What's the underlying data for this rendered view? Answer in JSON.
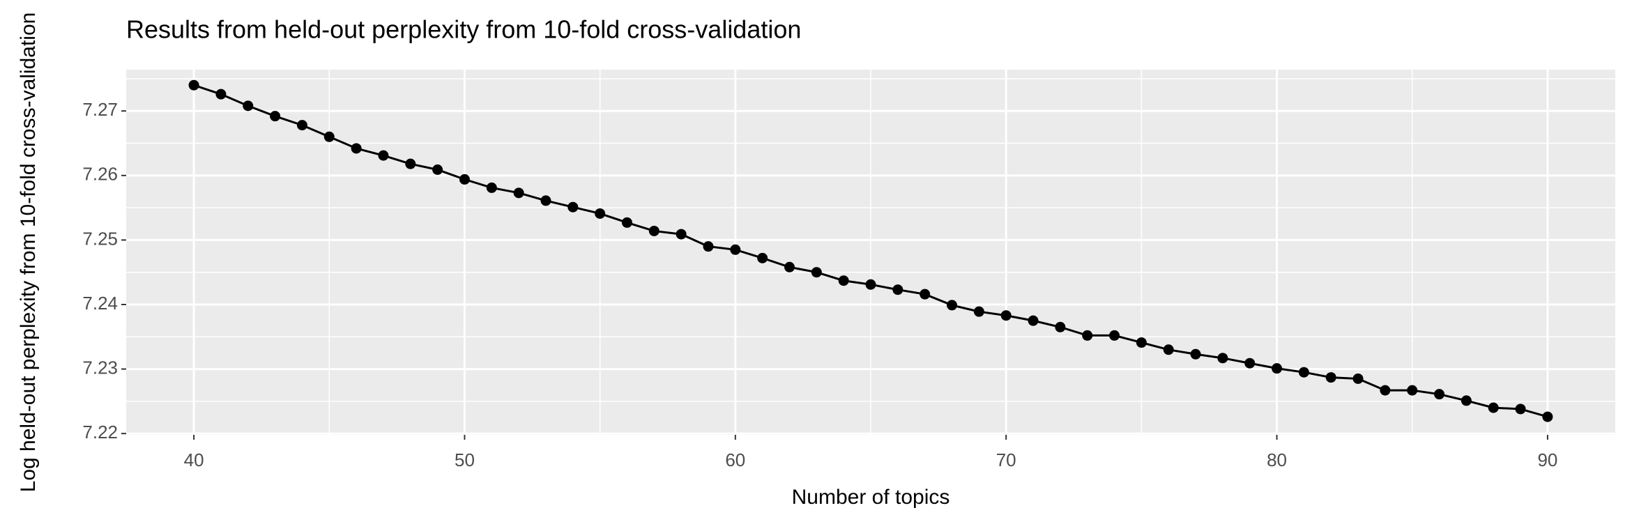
{
  "chart_data": {
    "type": "line",
    "title": "Results from held-out perplexity from 10-fold cross-validation",
    "x_label": "Number of topics",
    "y_label": "Log held-out perplexity from 10-fold cross-validation",
    "x": [
      40,
      41,
      42,
      43,
      44,
      45,
      46,
      47,
      48,
      49,
      50,
      51,
      52,
      53,
      54,
      55,
      56,
      57,
      58,
      59,
      60,
      61,
      62,
      63,
      64,
      65,
      66,
      67,
      68,
      69,
      70,
      71,
      72,
      73,
      74,
      75,
      76,
      77,
      78,
      79,
      80,
      81,
      82,
      83,
      84,
      85,
      86,
      87,
      88,
      89,
      90
    ],
    "series": [
      {
        "name": "perplexity",
        "color": "#000000",
        "values": [
          7.274,
          7.2726,
          7.2708,
          7.2692,
          7.2678,
          7.266,
          7.2642,
          7.2631,
          7.2618,
          7.2609,
          7.2594,
          7.2581,
          7.2573,
          7.2561,
          7.2551,
          7.2541,
          7.2527,
          7.2514,
          7.2509,
          7.249,
          7.2485,
          7.2472,
          7.2458,
          7.245,
          7.2437,
          7.2431,
          7.2423,
          7.2416,
          7.2399,
          7.2389,
          7.2383,
          7.2375,
          7.2365,
          7.2352,
          7.2352,
          7.2341,
          7.233,
          7.2323,
          7.2317,
          7.2309,
          7.2301,
          7.2295,
          7.2287,
          7.2285,
          7.2267,
          7.2267,
          7.2261,
          7.2251,
          7.224,
          7.2238,
          7.2226
        ]
      }
    ],
    "xlim": [
      37.5,
      92.5
    ],
    "xticks": [
      40,
      50,
      60,
      70,
      80,
      90
    ],
    "ylim": [
      7.2198,
      7.2764
    ],
    "yticks": [
      {
        "value": 7.22,
        "label": "7.22"
      },
      {
        "value": 7.23,
        "label": "7.23"
      },
      {
        "value": 7.24,
        "label": "7.24"
      },
      {
        "value": 7.25,
        "label": "7.25"
      },
      {
        "value": 7.26,
        "label": "7.26"
      },
      {
        "value": 7.27,
        "label": "7.27"
      }
    ],
    "grid": true
  }
}
